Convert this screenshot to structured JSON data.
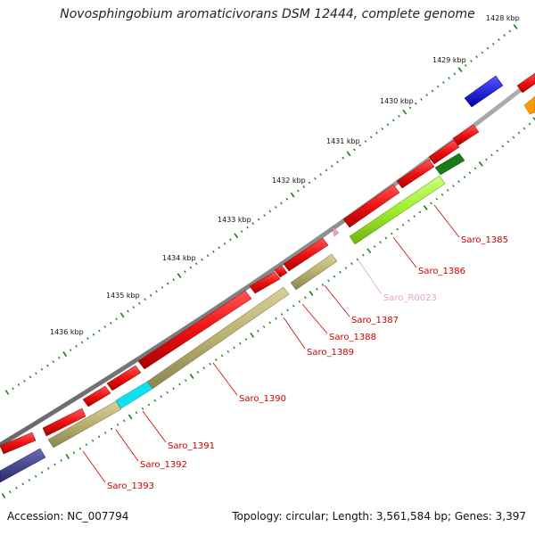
{
  "title": "Novosphingobium aromaticivorans DSM 12444, complete genome",
  "footer": {
    "accession": "Accession: NC_007794",
    "stats": "Topology: circular; Length: 3,561,584 bp; Genes: 3,397"
  },
  "kbp_labels": [
    {
      "text": "1428 kbp"
    },
    {
      "text": "1429 kbp"
    },
    {
      "text": "1430 kbp"
    },
    {
      "text": "1431 kbp"
    },
    {
      "text": "1432 kbp"
    },
    {
      "text": "1433 kbp"
    },
    {
      "text": "1434 kbp"
    },
    {
      "text": "1435 kbp"
    },
    {
      "text": "1436 kbp"
    }
  ],
  "gene_labels": [
    {
      "text": "Saro_1385",
      "color": "#cc0000"
    },
    {
      "text": "Saro_1386",
      "color": "#cc0000"
    },
    {
      "text": "Saro_R0023",
      "color": "#f0a0c8"
    },
    {
      "text": "Saro_1387",
      "color": "#cc0000"
    },
    {
      "text": "Saro_1388",
      "color": "#cc0000"
    },
    {
      "text": "Saro_1389",
      "color": "#cc0000"
    },
    {
      "text": "Saro_1390",
      "color": "#cc0000"
    },
    {
      "text": "Saro_1391",
      "color": "#cc0000"
    },
    {
      "text": "Saro_1392",
      "color": "#cc0000"
    },
    {
      "text": "Saro_1393",
      "color": "#cc0000"
    }
  ],
  "colors": {
    "backbone": "#888888",
    "tick": "#1a7a1a",
    "forward_cds": "#ee1111",
    "reverse_cds": "#b8b070",
    "green_cds": "#a0ee30",
    "dark_green_cds": "#1a7a1a",
    "blue_cds": "#1010ee",
    "cyan_cds": "#10e0f0",
    "navy_cds": "#3a3a8a",
    "orange_cds": "#ff9900",
    "rna": "#f0a0c8"
  }
}
